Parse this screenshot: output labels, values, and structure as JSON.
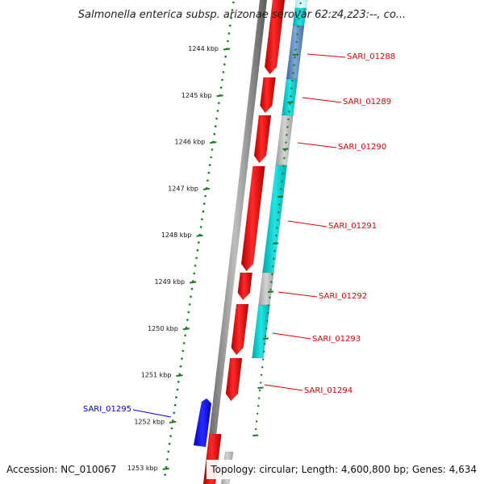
{
  "title": "Salmonella enterica subsp. arizonae serovar 62:z4,z23:--, co...",
  "accession": "Accession: NC_010067",
  "summary": "Topology: circular; Length: 4,600,800 bp; Genes: 4,634",
  "colors": {
    "backbone": "#7a7a7a",
    "tick": "#1f7a1f",
    "forward_cds": "#ff0000",
    "cyan_feature": "#00cccc",
    "grey_feature": "#b5b5b5",
    "steelblue_feature": "#4f7fb0",
    "highlight_gene": "#0000ee",
    "gene_label_red": "#dd0000",
    "gene_label_blue": "#0000cc"
  },
  "scale": {
    "unit": "kbp",
    "ticks": [
      {
        "kbp": 1244,
        "label": "1244 kbp"
      },
      {
        "kbp": 1245,
        "label": "1245 kbp"
      },
      {
        "kbp": 1246,
        "label": "1246 kbp"
      },
      {
        "kbp": 1247,
        "label": "1247 kbp"
      },
      {
        "kbp": 1248,
        "label": "1248 kbp"
      },
      {
        "kbp": 1249,
        "label": "1249 kbp"
      },
      {
        "kbp": 1250,
        "label": "1250 kbp"
      },
      {
        "kbp": 1251,
        "label": "1251 kbp"
      },
      {
        "kbp": 1252,
        "label": "1252 kbp"
      },
      {
        "kbp": 1253,
        "label": "1253 kbp"
      }
    ]
  },
  "gene_labels": [
    {
      "name": "SARI_01288",
      "color": "gene_label_red"
    },
    {
      "name": "SARI_01289",
      "color": "gene_label_red"
    },
    {
      "name": "SARI_01290",
      "color": "gene_label_red"
    },
    {
      "name": "SARI_01291",
      "color": "gene_label_red"
    },
    {
      "name": "SARI_01292",
      "color": "gene_label_red"
    },
    {
      "name": "SARI_01293",
      "color": "gene_label_red"
    },
    {
      "name": "SARI_01294",
      "color": "gene_label_red"
    },
    {
      "name": "SARI_01295",
      "color": "gene_label_blue"
    }
  ]
}
